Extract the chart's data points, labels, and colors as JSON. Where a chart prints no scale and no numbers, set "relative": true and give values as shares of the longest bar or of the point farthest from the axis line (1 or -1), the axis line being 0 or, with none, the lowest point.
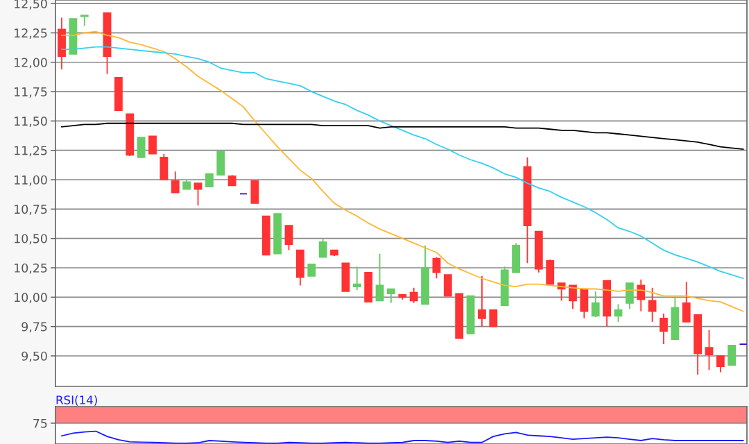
{
  "chart_data": [
    {
      "type": "candlestick",
      "categories": [
        null,
        null,
        null,
        null,
        null,
        null,
        null,
        null,
        null,
        null,
        null,
        null,
        null,
        null,
        null,
        null,
        null,
        null,
        null,
        null,
        null,
        null,
        null,
        null,
        null,
        null,
        null,
        null,
        null,
        null,
        null,
        null,
        null,
        null,
        null,
        null,
        null,
        null,
        null,
        null,
        null,
        null,
        null,
        null,
        null,
        null,
        null,
        null,
        null,
        null,
        null,
        null,
        null,
        null,
        null,
        null,
        null,
        null,
        null,
        null,
        null
      ],
      "ohlc": [
        [
          12.28,
          12.38,
          11.94,
          12.05
        ],
        [
          12.07,
          12.37,
          12.07,
          12.37
        ],
        [
          12.39,
          12.4,
          12.31,
          12.4
        ],
        null,
        [
          12.42,
          12.42,
          11.9,
          12.05
        ],
        [
          11.87,
          11.87,
          11.59,
          11.59
        ],
        [
          11.56,
          11.56,
          11.2,
          11.21
        ],
        [
          11.19,
          11.36,
          11.19,
          11.36
        ],
        [
          11.37,
          11.37,
          11.22,
          11.22
        ],
        [
          11.19,
          11.22,
          11.0,
          11.0
        ],
        [
          10.99,
          11.07,
          10.89,
          10.89
        ],
        [
          10.92,
          11.0,
          10.92,
          10.98
        ],
        [
          10.97,
          10.97,
          10.78,
          10.92
        ],
        [
          10.94,
          11.05,
          10.94,
          11.05
        ],
        [
          11.04,
          11.24,
          11.04,
          11.24
        ],
        [
          11.03,
          11.04,
          10.95,
          10.95
        ],
        [
          10.88,
          10.88,
          10.88,
          10.88
        ],
        [
          10.99,
          10.99,
          10.8,
          10.8
        ],
        [
          10.69,
          10.69,
          10.36,
          10.36
        ],
        [
          10.37,
          10.71,
          10.37,
          10.71
        ],
        [
          10.61,
          10.61,
          10.4,
          10.45
        ],
        [
          10.4,
          10.4,
          10.1,
          10.17
        ],
        [
          10.18,
          10.28,
          10.18,
          10.28
        ],
        [
          10.34,
          10.5,
          10.34,
          10.47
        ],
        [
          10.4,
          10.4,
          10.35,
          10.36
        ],
        [
          10.29,
          10.29,
          10.05,
          10.05
        ],
        [
          10.09,
          10.26,
          10.06,
          10.11
        ],
        [
          10.21,
          10.21,
          9.96,
          9.96
        ],
        [
          9.97,
          10.37,
          9.97,
          10.1
        ],
        [
          10.03,
          10.07,
          9.95,
          10.07
        ],
        [
          10.02,
          10.02,
          9.98,
          10.0
        ],
        [
          10.04,
          10.08,
          9.95,
          9.97
        ],
        [
          9.94,
          10.44,
          9.94,
          10.25
        ],
        [
          10.33,
          10.34,
          10.16,
          10.21
        ],
        [
          10.19,
          10.19,
          10.01,
          10.01
        ],
        [
          10.03,
          10.03,
          9.65,
          9.65
        ],
        [
          9.69,
          10.01,
          9.69,
          10.01
        ],
        [
          9.89,
          10.18,
          9.75,
          9.82
        ],
        [
          9.89,
          9.89,
          9.75,
          9.75
        ],
        [
          9.93,
          10.26,
          9.93,
          10.23
        ],
        [
          10.21,
          10.46,
          10.21,
          10.44
        ],
        [
          11.11,
          11.19,
          10.29,
          10.61
        ],
        [
          10.56,
          10.56,
          10.21,
          10.24
        ],
        [
          10.31,
          10.32,
          10.11,
          10.11
        ],
        [
          10.12,
          10.12,
          9.97,
          10.07
        ],
        [
          10.1,
          10.1,
          9.9,
          9.97
        ],
        [
          10.07,
          10.07,
          9.82,
          9.88
        ],
        [
          9.84,
          10.05,
          9.83,
          9.95
        ],
        [
          10.14,
          10.14,
          9.75,
          9.84
        ],
        [
          9.84,
          9.94,
          9.79,
          9.89
        ],
        [
          9.95,
          10.12,
          9.9,
          10.12
        ],
        [
          10.1,
          10.15,
          9.88,
          9.98
        ],
        [
          9.97,
          10.08,
          9.79,
          9.88
        ],
        [
          9.82,
          9.86,
          9.6,
          9.71
        ],
        [
          9.64,
          10.01,
          9.64,
          9.91
        ],
        [
          9.95,
          10.13,
          9.79,
          9.79
        ],
        [
          9.85,
          9.85,
          9.34,
          9.52
        ],
        [
          9.57,
          9.72,
          9.38,
          9.51
        ],
        [
          9.5,
          9.5,
          9.36,
          9.41
        ],
        [
          9.42,
          9.59,
          9.42,
          9.59
        ],
        [
          9.6,
          9.6,
          9.6,
          9.6
        ]
      ],
      "colors": [
        "#ff3333",
        "#66cc66",
        "#66cc66",
        null,
        "#ff3333",
        "#ff3333",
        "#ff3333",
        "#66cc66",
        "#ff3333",
        "#ff3333",
        "#ff3333",
        "#66cc66",
        "#ff3333",
        "#66cc66",
        "#66cc66",
        "#ff3333",
        "#3300cc",
        "#ff3333",
        "#ff3333",
        "#66cc66",
        "#ff3333",
        "#ff3333",
        "#66cc66",
        "#66cc66",
        "#ff3333",
        "#ff3333",
        "#66cc66",
        "#ff3333",
        "#66cc66",
        "#66cc66",
        "#ff3333",
        "#ff3333",
        "#66cc66",
        "#ff3333",
        "#ff3333",
        "#ff3333",
        "#66cc66",
        "#ff3333",
        "#ff3333",
        "#66cc66",
        "#66cc66",
        "#ff3333",
        "#ff3333",
        "#ff3333",
        "#ff3333",
        "#ff3333",
        "#ff3333",
        "#66cc66",
        "#ff3333",
        "#66cc66",
        "#66cc66",
        "#ff3333",
        "#ff3333",
        "#ff3333",
        "#66cc66",
        "#ff3333",
        "#ff3333",
        "#ff3333",
        "#ff3333",
        "#66cc66",
        "#3300cc"
      ],
      "series": [
        {
          "type": "line",
          "color": "#ffb733",
          "values": [
            12.23,
            12.23,
            12.25,
            12.26,
            12.23,
            12.21,
            12.17,
            12.15,
            12.12,
            12.09,
            12.03,
            11.96,
            11.88,
            11.82,
            11.76,
            11.69,
            11.62,
            11.5,
            11.39,
            11.28,
            11.18,
            11.08,
            11.01,
            10.9,
            10.8,
            10.74,
            10.69,
            10.63,
            10.58,
            10.54,
            10.5,
            10.46,
            10.42,
            10.38,
            10.29,
            10.24,
            10.2,
            10.16,
            10.13,
            10.1,
            10.09,
            10.11,
            10.11,
            10.1,
            10.09,
            10.08,
            10.07,
            10.07,
            10.06,
            10.05,
            10.06,
            10.06,
            10.04,
            10.01,
            10.01,
            10.01,
            9.99,
            9.97,
            9.96,
            9.92,
            9.88
          ]
        },
        {
          "type": "line",
          "color": "#33d0f0",
          "values": [
            12.11,
            12.11,
            12.12,
            12.13,
            12.13,
            12.12,
            12.11,
            12.1,
            12.09,
            12.08,
            12.07,
            12.05,
            12.03,
            12.0,
            11.95,
            11.93,
            11.91,
            11.91,
            11.86,
            11.84,
            11.82,
            11.8,
            11.75,
            11.71,
            11.67,
            11.64,
            11.59,
            11.55,
            11.5,
            11.46,
            11.42,
            11.38,
            11.35,
            11.3,
            11.26,
            11.21,
            11.17,
            11.14,
            11.1,
            11.05,
            11.02,
            10.97,
            10.93,
            10.9,
            10.85,
            10.81,
            10.77,
            10.72,
            10.66,
            10.59,
            10.56,
            10.52,
            10.46,
            10.4,
            10.36,
            10.33,
            10.3,
            10.26,
            10.22,
            10.19,
            10.16
          ]
        },
        {
          "type": "line",
          "color": "#000000",
          "values": [
            11.45,
            11.46,
            11.47,
            11.47,
            11.48,
            11.48,
            11.48,
            11.48,
            11.48,
            11.48,
            11.48,
            11.48,
            11.48,
            11.48,
            11.48,
            11.48,
            11.47,
            11.47,
            11.47,
            11.47,
            11.47,
            11.47,
            11.47,
            11.46,
            11.46,
            11.46,
            11.46,
            11.46,
            11.44,
            11.45,
            11.45,
            11.45,
            11.45,
            11.45,
            11.45,
            11.45,
            11.45,
            11.45,
            11.45,
            11.45,
            11.44,
            11.44,
            11.44,
            11.43,
            11.42,
            11.42,
            11.41,
            11.4,
            11.4,
            11.39,
            11.38,
            11.37,
            11.36,
            11.35,
            11.34,
            11.33,
            11.32,
            11.3,
            11.28,
            11.27,
            11.26
          ]
        }
      ],
      "ylim": [
        9.24,
        12.53
      ],
      "yticks": [
        {
          "value": 9.5,
          "label": "9,50"
        },
        {
          "value": 9.75,
          "label": "9,75"
        },
        {
          "value": 10.0,
          "label": "10,00"
        },
        {
          "value": 10.25,
          "label": "10,25"
        },
        {
          "value": 10.5,
          "label": "10,50"
        },
        {
          "value": 10.75,
          "label": "10,75"
        },
        {
          "value": 11.0,
          "label": "11,00"
        },
        {
          "value": 11.25,
          "label": "11,25"
        },
        {
          "value": 11.5,
          "label": "11,50"
        },
        {
          "value": 11.75,
          "label": "11,75"
        },
        {
          "value": 12.0,
          "label": "12,00"
        },
        {
          "value": 12.25,
          "label": "12,25"
        },
        {
          "value": 12.5,
          "label": "12,50"
        }
      ],
      "grid": "y",
      "tick_labels": "y"
    },
    {
      "type": "line",
      "title": "RSI(14)",
      "categories": [
        null,
        null,
        null,
        null,
        null,
        null,
        null,
        null,
        null,
        null,
        null,
        null,
        null,
        null,
        null,
        null,
        null,
        null,
        null,
        null,
        null,
        null,
        null,
        null,
        null,
        null,
        null,
        null,
        null,
        null,
        null,
        null,
        null,
        null,
        null,
        null,
        null,
        null,
        null,
        null,
        null,
        null,
        null,
        null,
        null,
        null,
        null,
        null,
        null,
        null,
        null,
        null,
        null,
        null,
        null,
        null,
        null,
        null,
        null,
        null,
        null
      ],
      "series": [
        {
          "color": "#1a1aff",
          "values": [
            0.61,
            0.83,
            0.94,
            1,
            0.56,
            0.28,
            0.11,
            0.08,
            0.06,
            0.03,
            0,
            0,
            0.03,
            0.22,
            0.17,
            0.11,
            0.06,
            0.03,
            0,
            0,
            0.06,
            0.03,
            0,
            0,
            0.03,
            0.06,
            0.03,
            0,
            0,
            0.03,
            0.06,
            0.22,
            0.22,
            0.17,
            0.06,
            0.17,
            0.06,
            0.06,
            0.56,
            0.78,
            0.89,
            0.67,
            0.61,
            0.56,
            0.44,
            0.33,
            0.39,
            0.44,
            0.5,
            0.44,
            0.33,
            0.22,
            0.39,
            0.28,
            0.22,
            0.22,
            0.22,
            0.22,
            0.22,
            0.22,
            0.22
          ]
        }
      ],
      "relative": true,
      "bands": [
        {
          "axis": "y",
          "from": 1.67,
          "to": 3.06,
          "color": "#ff8080"
        }
      ],
      "annotations": [
        "75"
      ],
      "tick_labels": "y"
    }
  ]
}
